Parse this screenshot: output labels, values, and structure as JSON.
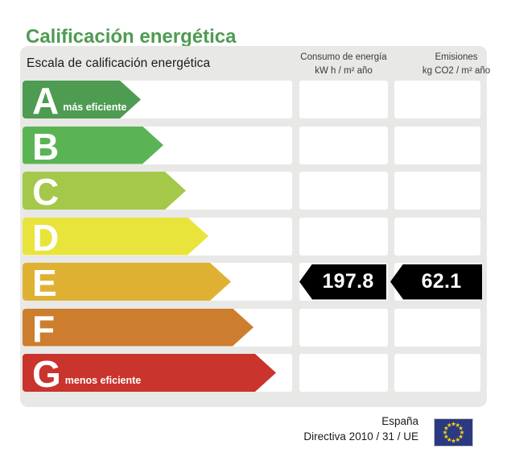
{
  "title": "Calificación energética",
  "panel": {
    "scale_header": "Escala de calificación energética",
    "columns": {
      "consumption": {
        "line1": "Consumo de energía",
        "line2": "kW h / m² año"
      },
      "emissions": {
        "line1": "Emisiones",
        "line2": "kg CO2 / m² año"
      }
    },
    "rows": [
      {
        "letter": "A",
        "note": "más eficiente",
        "color": "#4e9b52",
        "arrow_width": 147,
        "consumption": "",
        "emissions": ""
      },
      {
        "letter": "B",
        "note": "",
        "color": "#5bb454",
        "arrow_width": 175,
        "consumption": "",
        "emissions": ""
      },
      {
        "letter": "C",
        "note": "",
        "color": "#a3c84a",
        "arrow_width": 203,
        "consumption": "",
        "emissions": ""
      },
      {
        "letter": "D",
        "note": "",
        "color": "#e9e43c",
        "arrow_width": 231,
        "consumption": "",
        "emissions": ""
      },
      {
        "letter": "E",
        "note": "",
        "color": "#dfb133",
        "arrow_width": 259,
        "consumption": "197.8",
        "emissions": "62.1"
      },
      {
        "letter": "F",
        "note": "",
        "color": "#cd7d2e",
        "arrow_width": 287,
        "consumption": "",
        "emissions": ""
      },
      {
        "letter": "G",
        "note": "menos eficiente",
        "color": "#c9342d",
        "arrow_width": 315,
        "consumption": "",
        "emissions": ""
      }
    ]
  },
  "footer": {
    "country": "España",
    "directive": "Directiva 2010 / 31 / UE",
    "eu_flag": {
      "background": "#2b3a80",
      "star_color": "#f7d117"
    }
  },
  "colors": {
    "title": "#4e9b52",
    "panel_background": "#e8e8e7",
    "value_arrow_background": "#000000",
    "value_text": "#ffffff",
    "header_text": "#1a1a1a",
    "column_header_text": "#3a3a3a"
  },
  "chart_data": {
    "type": "bar",
    "title": "Calificación energética",
    "categories": [
      "A",
      "B",
      "C",
      "D",
      "E",
      "F",
      "G"
    ],
    "category_notes": {
      "A": "más eficiente",
      "G": "menos eficiente"
    },
    "assigned_rating": "E",
    "series": [
      {
        "name": "Consumo de energía (kW h / m² año)",
        "values": [
          null,
          null,
          null,
          null,
          197.8,
          null,
          null
        ]
      },
      {
        "name": "Emisiones (kg CO2 / m² año)",
        "values": [
          null,
          null,
          null,
          null,
          62.1,
          null,
          null
        ]
      }
    ],
    "legend_position": "none",
    "grid": false
  }
}
